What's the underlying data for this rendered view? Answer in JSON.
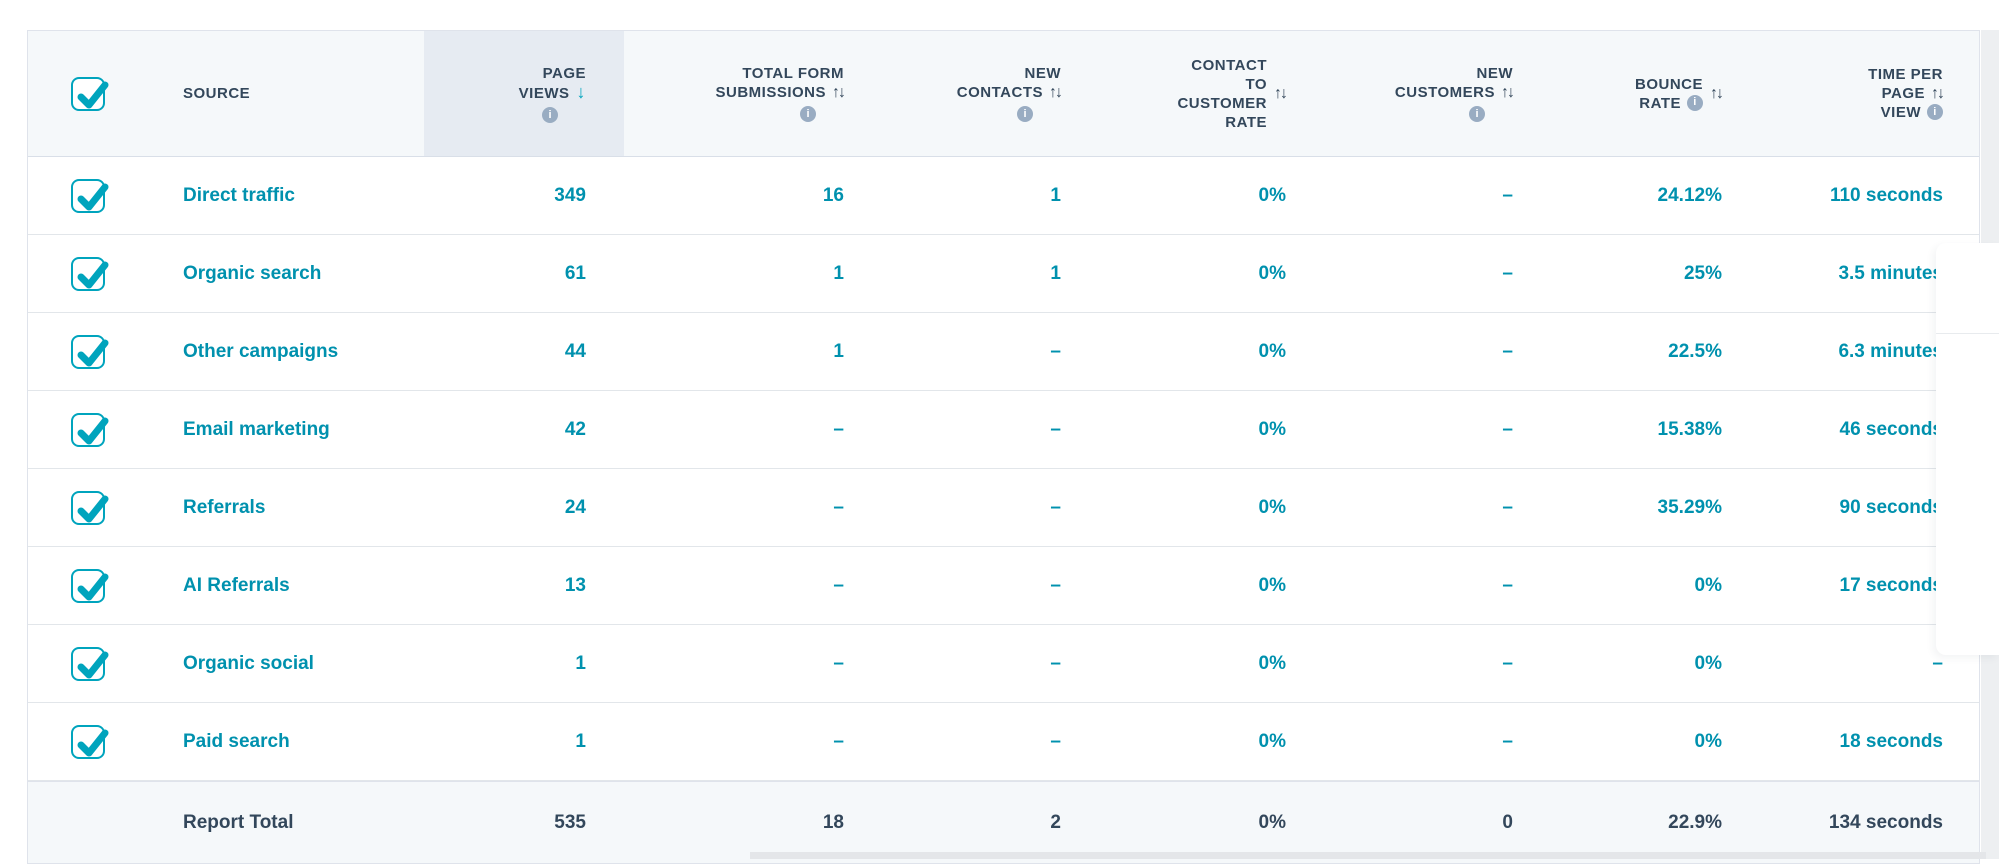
{
  "table": {
    "columns": [
      {
        "id": "source",
        "lines": [
          "SOURCE"
        ],
        "arrow": null,
        "info": null
      },
      {
        "id": "page_views",
        "lines": [
          "PAGE",
          "VIEWS"
        ],
        "arrow": "down",
        "arrow_line": 1,
        "info": "below",
        "sorted": true
      },
      {
        "id": "total_form_submissions",
        "lines": [
          "TOTAL FORM",
          "SUBMISSIONS"
        ],
        "arrow": "updown",
        "arrow_line": 1,
        "info": "below"
      },
      {
        "id": "new_contacts",
        "lines": [
          "NEW",
          "CONTACTS"
        ],
        "arrow": "updown",
        "arrow_line": 1,
        "info": "below"
      },
      {
        "id": "contact_to_customer_rate",
        "lines": [
          "CONTACT",
          "TO",
          "CUSTOMER",
          "RATE"
        ],
        "arrow": "updown",
        "arrow_line": "side",
        "info": null
      },
      {
        "id": "new_customers",
        "lines": [
          "NEW",
          "CUSTOMERS"
        ],
        "arrow": "updown",
        "arrow_line": 1,
        "info": "below"
      },
      {
        "id": "bounce_rate",
        "lines": [
          "BOUNCE",
          "RATE"
        ],
        "arrow": "updown",
        "arrow_line": "side",
        "info": "inline",
        "info_line": 1
      },
      {
        "id": "time_per_page_view",
        "lines": [
          "TIME PER",
          "PAGE",
          "VIEW"
        ],
        "arrow": "updown",
        "arrow_line": 1,
        "info": "inline",
        "info_line": 2
      }
    ],
    "rows": [
      {
        "label": "Direct traffic",
        "checked": true,
        "values": [
          "349",
          "16",
          "1",
          "0%",
          "–",
          "24.12%",
          "110 seconds"
        ]
      },
      {
        "label": "Organic search",
        "checked": true,
        "values": [
          "61",
          "1",
          "1",
          "0%",
          "–",
          "25%",
          "3.5 minutes"
        ]
      },
      {
        "label": "Other campaigns",
        "checked": true,
        "values": [
          "44",
          "1",
          "–",
          "0%",
          "–",
          "22.5%",
          "6.3 minutes"
        ]
      },
      {
        "label": "Email marketing",
        "checked": true,
        "values": [
          "42",
          "–",
          "–",
          "0%",
          "–",
          "15.38%",
          "46 seconds"
        ]
      },
      {
        "label": "Referrals",
        "checked": true,
        "values": [
          "24",
          "–",
          "–",
          "0%",
          "–",
          "35.29%",
          "90 seconds"
        ]
      },
      {
        "label": "AI Referrals",
        "checked": true,
        "values": [
          "13",
          "–",
          "–",
          "0%",
          "–",
          "0%",
          "17 seconds"
        ]
      },
      {
        "label": "Organic social",
        "checked": true,
        "values": [
          "1",
          "–",
          "–",
          "0%",
          "–",
          "0%",
          "–"
        ]
      },
      {
        "label": "Paid search",
        "checked": true,
        "values": [
          "1",
          "–",
          "–",
          "0%",
          "–",
          "0%",
          "18 seconds"
        ]
      }
    ],
    "total": {
      "label": "Report Total",
      "values": [
        "535",
        "18",
        "2",
        "0%",
        "0",
        "22.9%",
        "134 seconds"
      ]
    },
    "select_all_checked": true
  },
  "icons": {
    "info_glyph": "i",
    "sort_desc_glyph": "↓",
    "sort_both_glyph": "↑↓"
  },
  "colors": {
    "accent_teal": "#0091ae",
    "checkbox_teal": "#00a4bd",
    "header_text": "#33475b",
    "info_icon_bg": "#99acc2",
    "header_bg": "#f5f8fa",
    "sorted_column_bg": "#e6ebf2",
    "total_row_bg": "#f5f8fa",
    "border": "#dfe3eb"
  }
}
